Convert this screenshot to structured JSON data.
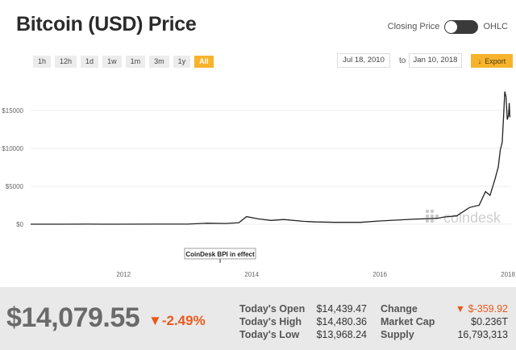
{
  "header": {
    "title": "Bitcoin (USD) Price",
    "toggle_left": "Closing Price",
    "toggle_right": "OHLC"
  },
  "ranges": [
    "1h",
    "12h",
    "1d",
    "1w",
    "1m",
    "3m",
    "1y",
    "All"
  ],
  "active_range": "All",
  "dates": {
    "from": "Jul 18, 2010",
    "to_label": "to",
    "to": "Jan 10, 2018"
  },
  "export_label": "Export",
  "watermark": "coindesk",
  "annotation": "CoinDesk BPI in effect",
  "chart_data": {
    "type": "line",
    "xlabel": "",
    "ylabel": "",
    "x_ticks": [
      "2012",
      "2014",
      "2016",
      "2018"
    ],
    "y_ticks": [
      "$0",
      "$5000",
      "$10000",
      "$15000"
    ],
    "ylim": [
      0,
      20000
    ],
    "grid": true,
    "series": [
      {
        "x": [
          2010.55,
          2011.0,
          2011.45,
          2011.8,
          2012.5,
          2013.0,
          2013.3,
          2013.6,
          2013.8,
          2013.92,
          2014.1,
          2014.3,
          2014.5,
          2014.8,
          2015.0,
          2015.3,
          2015.7,
          2016.0,
          2016.5,
          2016.9,
          2017.0,
          2017.2,
          2017.4,
          2017.55,
          2017.65,
          2017.72,
          2017.8,
          2017.85,
          2017.88,
          2017.91,
          2017.93,
          2017.95,
          2017.97,
          2017.99,
          2018.01,
          2018.02,
          2018.03
        ],
        "y": [
          0,
          0.5,
          15,
          3,
          10,
          15,
          130,
          100,
          200,
          1000,
          700,
          500,
          620,
          380,
          300,
          240,
          250,
          430,
          650,
          780,
          950,
          1100,
          2200,
          2500,
          4300,
          3800,
          6000,
          7600,
          9800,
          10800,
          14000,
          17500,
          16800,
          13800,
          14400,
          16000,
          14100
        ]
      }
    ]
  },
  "summary": {
    "price": "$14,079.55",
    "pct_change": "▼-2.49%",
    "open_label": "Today's Open",
    "open": "$14,439.47",
    "high_label": "Today's High",
    "high": "$14,480.36",
    "low_label": "Today's Low",
    "low": "$13,968.24",
    "change_label": "Change",
    "change": "▼ $-359.92",
    "mcap_label": "Market Cap",
    "mcap": "$0.236T",
    "supply_label": "Supply",
    "supply": "16,793,313"
  }
}
